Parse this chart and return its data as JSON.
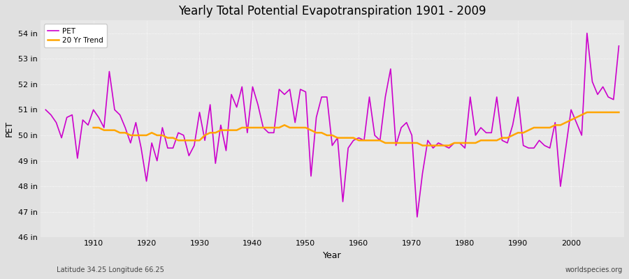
{
  "title": "Yearly Total Potential Evapotranspiration 1901 - 2009",
  "xlabel": "Year",
  "ylabel": "PET",
  "subtitle_left": "Latitude 34.25 Longitude 66.25",
  "subtitle_right": "worldspecies.org",
  "pet_color": "#CC00CC",
  "trend_color": "#FFA500",
  "bg_color": "#E0E0E0",
  "plot_bg_color": "#E8E8E8",
  "ylim": [
    46,
    54.5
  ],
  "yticks": [
    46,
    47,
    48,
    49,
    50,
    51,
    52,
    53,
    54
  ],
  "ytick_labels": [
    "46 in",
    "47 in",
    "48 in",
    "49 in",
    "50 in",
    "51 in",
    "52 in",
    "53 in",
    "54 in"
  ],
  "xlim_left": 1900,
  "xlim_right": 2010,
  "xticks": [
    1910,
    1920,
    1930,
    1940,
    1950,
    1960,
    1970,
    1980,
    1990,
    2000
  ],
  "years": [
    1901,
    1902,
    1903,
    1904,
    1905,
    1906,
    1907,
    1908,
    1909,
    1910,
    1911,
    1912,
    1913,
    1914,
    1915,
    1916,
    1917,
    1918,
    1919,
    1920,
    1921,
    1922,
    1923,
    1924,
    1925,
    1926,
    1927,
    1928,
    1929,
    1930,
    1931,
    1932,
    1933,
    1934,
    1935,
    1936,
    1937,
    1938,
    1939,
    1940,
    1941,
    1942,
    1943,
    1944,
    1945,
    1946,
    1947,
    1948,
    1949,
    1950,
    1951,
    1952,
    1953,
    1954,
    1955,
    1956,
    1957,
    1958,
    1959,
    1960,
    1961,
    1962,
    1963,
    1964,
    1965,
    1966,
    1967,
    1968,
    1969,
    1970,
    1971,
    1972,
    1973,
    1974,
    1975,
    1976,
    1977,
    1978,
    1979,
    1980,
    1981,
    1982,
    1983,
    1984,
    1985,
    1986,
    1987,
    1988,
    1989,
    1990,
    1991,
    1992,
    1993,
    1994,
    1995,
    1996,
    1997,
    1998,
    1999,
    2000,
    2001,
    2002,
    2003,
    2004,
    2005,
    2006,
    2007,
    2008,
    2009
  ],
  "pet_values": [
    51.0,
    50.8,
    50.5,
    49.9,
    50.7,
    50.8,
    49.1,
    50.6,
    50.4,
    51.0,
    50.7,
    50.3,
    52.5,
    51.0,
    50.8,
    50.3,
    49.7,
    50.5,
    49.5,
    48.2,
    49.7,
    49.0,
    50.3,
    49.5,
    49.5,
    50.1,
    50.0,
    49.2,
    49.6,
    50.9,
    49.8,
    51.2,
    48.9,
    50.4,
    49.4,
    51.6,
    51.1,
    51.9,
    50.1,
    51.9,
    51.2,
    50.3,
    50.1,
    50.1,
    51.8,
    51.6,
    51.8,
    50.5,
    51.8,
    51.7,
    48.4,
    50.7,
    51.5,
    51.5,
    49.6,
    49.9,
    47.4,
    49.5,
    49.8,
    49.9,
    49.8,
    51.5,
    50.0,
    49.8,
    51.5,
    52.6,
    49.6,
    50.3,
    50.5,
    50.0,
    46.8,
    48.5,
    49.8,
    49.5,
    49.7,
    49.6,
    49.5,
    49.7,
    49.7,
    49.5,
    51.5,
    50.0,
    50.3,
    50.1,
    50.1,
    51.5,
    49.8,
    49.7,
    50.4,
    51.5,
    49.6,
    49.5,
    49.5,
    49.8,
    49.6,
    49.5,
    50.5,
    48.0,
    49.5,
    51.0,
    50.5,
    50.0,
    54.0,
    52.1,
    51.6,
    51.9,
    51.5,
    51.4,
    53.5
  ],
  "trend_values": [
    null,
    null,
    null,
    null,
    null,
    null,
    null,
    null,
    null,
    50.3,
    50.3,
    50.2,
    50.2,
    50.2,
    50.1,
    50.1,
    50.0,
    50.0,
    50.0,
    50.0,
    50.1,
    50.0,
    50.0,
    49.9,
    49.9,
    49.8,
    49.8,
    49.8,
    49.8,
    49.8,
    50.0,
    50.1,
    50.1,
    50.2,
    50.2,
    50.2,
    50.2,
    50.3,
    50.3,
    50.3,
    50.3,
    50.3,
    50.3,
    50.3,
    50.3,
    50.4,
    50.3,
    50.3,
    50.3,
    50.3,
    50.2,
    50.1,
    50.1,
    50.0,
    50.0,
    49.9,
    49.9,
    49.9,
    49.9,
    49.8,
    49.8,
    49.8,
    49.8,
    49.8,
    49.7,
    49.7,
    49.7,
    49.7,
    49.7,
    49.7,
    49.7,
    49.6,
    49.6,
    49.6,
    49.6,
    49.6,
    49.6,
    49.7,
    49.7,
    49.7,
    49.7,
    49.7,
    49.8,
    49.8,
    49.8,
    49.8,
    49.9,
    49.9,
    50.0,
    50.1,
    50.1,
    50.2,
    50.3,
    50.3,
    50.3,
    50.3,
    50.4,
    50.4,
    50.5,
    50.6,
    50.7,
    50.8,
    50.9,
    50.9,
    50.9,
    50.9,
    50.9,
    50.9,
    50.9
  ]
}
